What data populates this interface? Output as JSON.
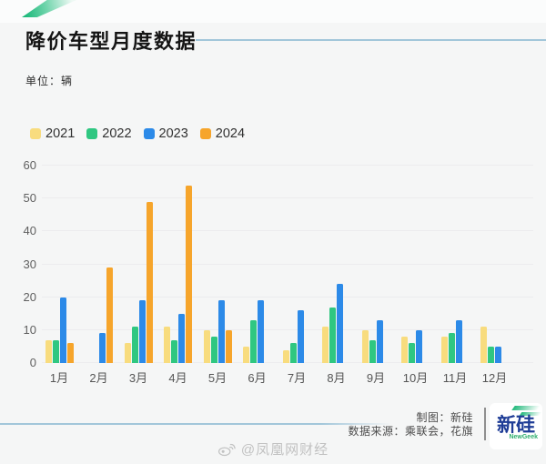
{
  "header": {
    "title": "降价车型月度数据",
    "unit_label": "单位：辆"
  },
  "chart_data": {
    "type": "bar",
    "title": "降价车型月度数据",
    "unit": "辆",
    "categories": [
      "1月",
      "2月",
      "3月",
      "4月",
      "5月",
      "6月",
      "7月",
      "8月",
      "9月",
      "10月",
      "11月",
      "12月"
    ],
    "series": [
      {
        "name": "2021",
        "color": "#f8dc7e",
        "values": [
          7,
          null,
          6,
          11,
          10,
          5,
          4,
          11,
          10,
          8,
          8,
          11
        ]
      },
      {
        "name": "2022",
        "color": "#2fc781",
        "values": [
          7,
          null,
          11,
          7,
          8,
          13,
          6,
          17,
          7,
          6,
          9,
          5
        ]
      },
      {
        "name": "2023",
        "color": "#2c8ae8",
        "values": [
          20,
          9,
          19,
          15,
          19,
          19,
          16,
          24,
          13,
          10,
          13,
          5
        ]
      },
      {
        "name": "2024",
        "color": "#f6a52b",
        "values": [
          6,
          29,
          49,
          54,
          10,
          null,
          null,
          null,
          null,
          null,
          null,
          null
        ]
      }
    ],
    "ylim": [
      0,
      60
    ],
    "yticks": [
      0,
      10,
      20,
      30,
      40,
      50,
      60
    ],
    "grid": true,
    "legend_position": "top-left"
  },
  "footer": {
    "credit": "制图：新硅",
    "source": "数据来源：乘联会，花旗",
    "logo_main": "新硅",
    "logo_sub": "NewGeek"
  },
  "watermark": {
    "text": "@凤凰网财经"
  },
  "colors": {
    "background": "#f5f6f6",
    "accent_line": "#a2c6da",
    "title_text": "#151515",
    "axis_text": "#5f5f5f",
    "gridline": "#ececee",
    "logo_navy": "#1e3c96",
    "logo_green": "#2fae6e"
  }
}
